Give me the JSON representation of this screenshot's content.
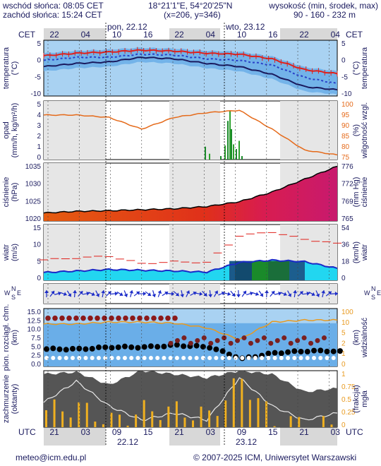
{
  "header": {
    "sunrise": "wschód słońca: 08:05 CET",
    "sunset": "zachód słońca: 15:24 CET",
    "coords": "18°21'1\"E, 54°20'25\"N",
    "grid": "(x=206, y=346)",
    "alt_title": "wysokość (min, środek, max)",
    "alt_values": "90 - 160 - 232 m"
  },
  "time_axis": {
    "top_hours": [
      "22",
      "04",
      "10",
      "16",
      "22",
      "04",
      "10",
      "16",
      "22",
      "04"
    ],
    "top_tz": "CET",
    "day_labels_top": [
      "pon, 22.12",
      "wto, 23.12"
    ],
    "bottom_hours": [
      "21",
      "03",
      "09",
      "15",
      "21",
      "03",
      "09",
      "15",
      "21",
      "03"
    ],
    "bottom_tz": "UTC",
    "day_labels_bottom": [
      "22.12",
      "23.12"
    ]
  },
  "panels": {
    "temperature": {
      "left_label": "temperatura",
      "left_unit": "(°C)",
      "right_label": "temperatura",
      "right_unit": "(°C)",
      "ticks": [
        "5",
        "0",
        "-5",
        "-10"
      ]
    },
    "precip": {
      "left_label": "opad",
      "left_unit": "(mm/h, kg/m²/h)",
      "right_label": "wilgotność wzgl.",
      "right_unit": "(%)",
      "left_ticks": [
        "5",
        "4",
        "3",
        "2",
        "1",
        "0"
      ],
      "right_ticks": [
        "100",
        "95",
        "90",
        "85",
        "80",
        "75"
      ]
    },
    "pressure": {
      "left_label": "ciśnienie",
      "left_unit": "(hPa)",
      "right_label": "ciśnienie",
      "right_unit": "(mm Hg)",
      "left_ticks": [
        "1035",
        "1030",
        "1025",
        "1020"
      ],
      "right_ticks": [
        "776",
        "772",
        "769",
        "765"
      ]
    },
    "wind": {
      "left_label": "wiatr",
      "left_unit": "(m/s)",
      "right_label": "wiatr",
      "right_unit": "(km/h)",
      "left_ticks": [
        "15",
        "10",
        "5",
        "0"
      ],
      "right_ticks": [
        "54",
        "36",
        "18",
        "0"
      ]
    },
    "wind_dir": {
      "letters": [
        "N",
        "S",
        "W",
        "E"
      ]
    },
    "cloud": {
      "left_label": "pion. rozciągł. chm.",
      "left_unit": "(km)",
      "right_label": "widzialność",
      "right_unit": "(km)",
      "left_ticks": [
        "15.0",
        "12.5",
        "10.0",
        "7.5",
        "5.0",
        "2.5",
        "0.0"
      ],
      "right_ticks": [
        "100",
        "10",
        "5",
        "2",
        "1",
        "0"
      ]
    },
    "cover": {
      "left_label": "zachmurzenie",
      "left_unit": "(oktanty)",
      "right_label": "mgła",
      "right_unit": "(frakcja)",
      "left_ticks": [
        "8",
        "6",
        "4",
        "2",
        "0"
      ],
      "right_ticks": [
        "1",
        "0.75",
        "0.5",
        "0.25",
        "0"
      ]
    }
  },
  "footer": {
    "email": "meteo@icm.edu.pl",
    "copyright": "© 2007-2025 ICM, Uniwersytet Warszawski"
  },
  "colors": {
    "navy": "#1a1a5e",
    "panel_blue": "#6aaee8",
    "light_blue": "#a9d2f2",
    "red": "#e0201b",
    "orange": "#e56a1a",
    "magenta": "#d21c66",
    "green": "#1a8a2a",
    "cyan": "#22d6f0",
    "gray": "#555555",
    "yellow": "#f0b020"
  },
  "chart_data": [
    {
      "type": "line",
      "title": "temperatura (°C)",
      "ylim": [
        -12,
        6
      ],
      "x": [
        "22.12 21:00",
        "22.12 03:00",
        "22.12 09:00",
        "22.12 15:00",
        "22.12 21:00",
        "23.12 03:00",
        "23.12 09:00",
        "23.12 15:00",
        "23.12 21:00",
        "24.12 03:00"
      ],
      "series": [
        {
          "values": [
            1,
            1.8,
            2.2,
            2.8,
            2.5,
            1.8,
            1.5,
            0,
            -3.5,
            -4.8
          ]
        },
        {
          "values": [
            -0.5,
            0.5,
            0.5,
            1.5,
            1.2,
            0,
            -0.5,
            -2,
            -6,
            -8
          ]
        },
        {
          "values": [
            -2.5,
            -1.5,
            -1,
            0.5,
            0,
            -1.5,
            -2.5,
            -5,
            -9,
            -10
          ]
        }
      ]
    },
    {
      "type": "bar",
      "title": "opad / wilgotność",
      "ylim": [
        0,
        5
      ],
      "y2lim": [
        75,
        100
      ],
      "x": [
        "22.12 21:00",
        "22.12 03:00",
        "22.12 09:00",
        "22.12 15:00",
        "22.12 21:00",
        "23.12 03:00",
        "23.12 09:00",
        "23.12 15:00",
        "23.12 21:00",
        "24.12 03:00"
      ],
      "series": [
        {
          "values": [
            0,
            0,
            0,
            0,
            0,
            0.4,
            2.5,
            0,
            0,
            0
          ]
        },
        {
          "values": [
            94,
            94,
            93,
            88,
            93,
            95,
            96,
            88,
            79,
            77
          ]
        }
      ]
    },
    {
      "type": "area",
      "title": "ciśnienie (hPa)",
      "ylim": [
        1020,
        1038
      ],
      "x": [
        "22.12 21:00",
        "22.12 03:00",
        "22.12 09:00",
        "22.12 15:00",
        "22.12 21:00",
        "23.12 03:00",
        "23.12 09:00",
        "23.12 15:00",
        "23.12 21:00",
        "24.12 03:00"
      ],
      "series": [
        {
          "values": [
            1022.5,
            1023,
            1023.2,
            1023.5,
            1023.8,
            1024.5,
            1026,
            1029,
            1033,
            1037
          ]
        }
      ]
    },
    {
      "type": "line",
      "title": "wiatr (m/s)",
      "ylim": [
        0,
        15
      ],
      "x": [
        "22.12 21:00",
        "22.12 03:00",
        "22.12 09:00",
        "22.12 15:00",
        "22.12 21:00",
        "23.12 03:00",
        "23.12 09:00",
        "23.12 15:00",
        "23.12 21:00",
        "24.12 03:00"
      ],
      "series": [
        {
          "values": [
            2.1,
            2.5,
            2.9,
            2.7,
            2.5,
            2.2,
            4.8,
            5.4,
            5.0,
            3.2
          ]
        },
        {
          "values": [
            5.5,
            6,
            6.5,
            4.5,
            5,
            4.8,
            12,
            13,
            11,
            10
          ]
        }
      ]
    },
    {
      "type": "scatter",
      "title": "pion. rozciągł. chm. / widzialność",
      "ylim": [
        0,
        15
      ],
      "x": [
        "22.12 21:00",
        "22.12 03:00",
        "22.12 09:00",
        "22.12 15:00",
        "22.12 21:00",
        "23.12 03:00",
        "23.12 09:00",
        "23.12 15:00",
        "23.12 21:00",
        "24.12 03:00"
      ],
      "series": [
        {
          "values": [
            4.5,
            4.5,
            5,
            5,
            5.5,
            5,
            2,
            3.5,
            4,
            4
          ]
        },
        {
          "values": [
            12.5,
            12.5,
            12.5,
            12.5,
            12.5,
            null,
            null,
            null,
            null,
            null
          ]
        }
      ]
    },
    {
      "type": "area",
      "title": "zachmurzenie (oktanty) / mgła",
      "ylim": [
        0,
        8
      ],
      "x": [
        "22.12 21:00",
        "22.12 03:00",
        "22.12 09:00",
        "22.12 15:00",
        "22.12 21:00",
        "23.12 03:00",
        "23.12 09:00",
        "23.12 15:00",
        "23.12 21:00",
        "24.12 03:00"
      ],
      "series": [
        {
          "values": [
            7.5,
            7.8,
            6,
            8,
            7.5,
            7,
            8,
            7.5,
            5,
            5.5
          ]
        },
        {
          "values": [
            0.3,
            0.35,
            0.1,
            0.3,
            0.3,
            0.2,
            0.85,
            0.1,
            0.05,
            0
          ]
        }
      ]
    }
  ]
}
